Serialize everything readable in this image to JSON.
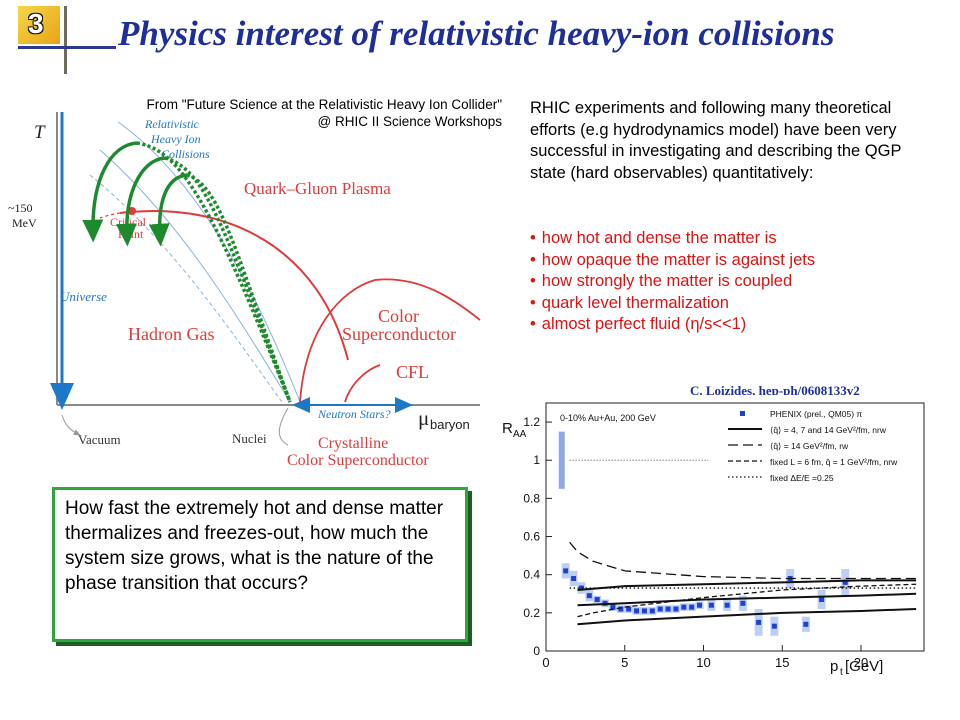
{
  "slide": {
    "number": "3",
    "title": "Physics interest of relativistic heavy-ion collisions"
  },
  "source_credit": {
    "line1": "From \"Future Science at the Relativistic Heavy Ion Collider\"",
    "line2": "@ RHIC II Science Workshops"
  },
  "phase_diagram": {
    "y_axis": "T",
    "temperature_mark_1": "~150",
    "temperature_mark_2": "MeV",
    "x_axis": "μ",
    "x_axis_sub": "baryon",
    "rhic_label_1": "Relativistic",
    "rhic_label_2": "Heavy Ion",
    "rhic_label_3": "Collisions",
    "qgp": "Quark–Gluon Plasma",
    "critical_1": "Critical",
    "critical_2": "Point",
    "universe": "Universe",
    "hadron_gas": "Hadron Gas",
    "color_sc_1": "Color",
    "color_sc_2": "Superconductor",
    "cfl": "CFL",
    "neutron_stars": "Neutron Stars?",
    "vacuum": "Vacuum",
    "nuclei": "Nuclei",
    "crystalline_1": "Crystalline",
    "crystalline_2": "Color Superconductor"
  },
  "intro_text": "RHIC experiments and following many theoretical efforts (e.g hydrodynamics model) have been very successful in investigating and describing the QGP state (hard observables) quantitatively:",
  "bullets": [
    "how hot and dense the matter is",
    "how opaque the matter is against jets",
    "how strongly the matter is coupled",
    "quark level thermalization",
    "almost perfect fluid (η/s<<1)"
  ],
  "question": "How fast the extremely hot and dense matter thermalizes and freezes-out, how much the system size grows, what is the nature of the phase transition that occurs?",
  "chart_credit": "C. Loizides, hep-ph/0608133v2",
  "colors": {
    "title_blue": "#1f2f9a",
    "bullet_red": "#e01010",
    "arrow_green": "#1e8a2e",
    "diagram_red": "#e03a3a",
    "axis_blue": "#1e78c8"
  },
  "chart_data": {
    "type": "scatter",
    "centrality_label": "0-10% Au+Au, 200 GeV",
    "ylabel": "R",
    "ylabel_sub": "AA",
    "xlabel": "p",
    "xlabel_sub": "t",
    "xlabel_unit": " [GeV]",
    "xlim": [
      0,
      24
    ],
    "ylim": [
      0,
      1.3
    ],
    "x_ticks": [
      "0",
      "5",
      "10",
      "15",
      "20"
    ],
    "y_ticks": [
      "0",
      "0.2",
      "0.4",
      "0.6",
      "0.8",
      "1",
      "1.2"
    ],
    "legend": [
      {
        "label": "PHENIX (prel., QM05) π",
        "style": "marker"
      },
      {
        "label": "⟨q̂⟩ = 4, 7 and 14 GeV²/fm, nrw",
        "style": "solid"
      },
      {
        "label": "⟨q̂⟩ = 14 GeV²/fm, rw",
        "style": "dash"
      },
      {
        "label": "fixed L = 6 fm, q̂ = 1 GeV²/fm, nrw",
        "style": "shortdash"
      },
      {
        "label": "fixed ΔE/E =0.25",
        "style": "dot"
      }
    ],
    "series": [
      {
        "name": "PHENIX (prel., QM05) π",
        "x": [
          1.25,
          1.75,
          2.25,
          2.75,
          3.25,
          3.75,
          4.25,
          4.75,
          5.25,
          5.75,
          6.25,
          6.75,
          7.25,
          7.75,
          8.25,
          8.75,
          9.25,
          9.75,
          10.5,
          11.5,
          12.5,
          13.5,
          14.5,
          15.5,
          16.5,
          17.5,
          19.0
        ],
        "y": [
          0.42,
          0.38,
          0.33,
          0.29,
          0.27,
          0.25,
          0.23,
          0.22,
          0.22,
          0.21,
          0.21,
          0.21,
          0.22,
          0.22,
          0.22,
          0.23,
          0.23,
          0.24,
          0.24,
          0.24,
          0.25,
          0.15,
          0.13,
          0.38,
          0.14,
          0.27,
          0.36
        ],
        "sys": [
          0.04,
          0.04,
          0.03,
          0.03,
          0.02,
          0.02,
          0.02,
          0.02,
          0.02,
          0.02,
          0.02,
          0.02,
          0.02,
          0.02,
          0.02,
          0.02,
          0.02,
          0.02,
          0.03,
          0.03,
          0.04,
          0.07,
          0.05,
          0.05,
          0.04,
          0.05,
          0.07
        ]
      },
      {
        "name": "⟨q̂⟩ = 4 GeV²/fm, nrw",
        "x": [
          2,
          5,
          10,
          15,
          20,
          23.5
        ],
        "y": [
          0.32,
          0.34,
          0.35,
          0.36,
          0.37,
          0.37
        ]
      },
      {
        "name": "⟨q̂⟩ = 7 GeV²/fm, nrw",
        "x": [
          2,
          5,
          10,
          15,
          20,
          23.5
        ],
        "y": [
          0.24,
          0.25,
          0.27,
          0.28,
          0.29,
          0.3
        ]
      },
      {
        "name": "⟨q̂⟩ = 14 GeV²/fm, nrw",
        "x": [
          2,
          5,
          10,
          15,
          20,
          23.5
        ],
        "y": [
          0.14,
          0.16,
          0.18,
          0.2,
          0.21,
          0.22
        ]
      },
      {
        "name": "⟨q̂⟩ = 14 GeV²/fm, rw",
        "x": [
          1.5,
          2,
          3,
          5,
          10,
          15,
          20,
          23.5
        ],
        "y": [
          0.57,
          0.52,
          0.47,
          0.42,
          0.39,
          0.38,
          0.38,
          0.38
        ]
      },
      {
        "name": "fixed L = 6 fm, q̂ = 1 GeV²/fm, nrw",
        "x": [
          2,
          3,
          5,
          10,
          15,
          20,
          23.5
        ],
        "y": [
          0.18,
          0.2,
          0.23,
          0.28,
          0.32,
          0.34,
          0.35
        ]
      },
      {
        "name": "fixed ΔE/E =0.25",
        "x": [
          1.5,
          23.5
        ],
        "y": [
          0.33,
          0.33
        ]
      }
    ],
    "reference": {
      "y": 1.0,
      "error_box": [
        0.85,
        1.15
      ]
    }
  }
}
